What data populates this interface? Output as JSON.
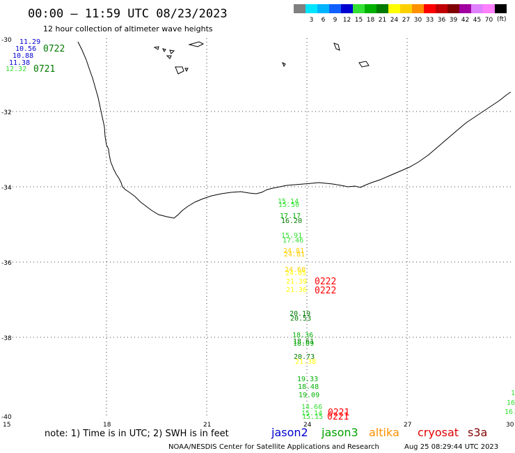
{
  "header": {
    "title": "00:00 — 11:59 UTC 08/23/2023",
    "subtitle": "12 hour collection of altimeter wave heights"
  },
  "legend": {
    "unit": "(ft)",
    "bins": [
      {
        "label": "",
        "color": "#808080"
      },
      {
        "label": "3",
        "color": "#00e5ff"
      },
      {
        "label": "6",
        "color": "#00b4ff"
      },
      {
        "label": "9",
        "color": "#1060ff"
      },
      {
        "label": "12",
        "color": "#0000d0"
      },
      {
        "label": "15",
        "color": "#33e033"
      },
      {
        "label": "18",
        "color": "#00b000"
      },
      {
        "label": "21",
        "color": "#007a00"
      },
      {
        "label": "24",
        "color": "#ffff00"
      },
      {
        "label": "27",
        "color": "#ffd000"
      },
      {
        "label": "30",
        "color": "#ff9000"
      },
      {
        "label": "33",
        "color": "#ff0000"
      },
      {
        "label": "36",
        "color": "#c00000"
      },
      {
        "label": "39",
        "color": "#800000"
      },
      {
        "label": "42",
        "color": "#a000a0"
      },
      {
        "label": "45",
        "color": "#e080ff"
      },
      {
        "label": "70",
        "color": "#ff80ff"
      },
      {
        "label": "",
        "color": "#000000"
      }
    ]
  },
  "axes": {
    "lon_ticks": [
      "15",
      "18",
      "21",
      "24",
      "27",
      "30"
    ],
    "lat_ticks": [
      "-30",
      "-32",
      "-34",
      "-36",
      "-38",
      "-40"
    ]
  },
  "observations": {
    "northwest_cluster": [
      {
        "text": "11.29",
        "color": "#0000d0"
      },
      {
        "text": "10.56",
        "color": "#0000d0"
      },
      {
        "text": "10.88",
        "color": "#0000d0"
      },
      {
        "text": "11.38",
        "color": "#0000d0"
      },
      {
        "text": "12.32",
        "color": "#33e033"
      }
    ],
    "northwest_times": [
      {
        "text": "0722",
        "color": "#007a00"
      },
      {
        "text": "0721",
        "color": "#007a00"
      }
    ],
    "track_24e": [
      {
        "text": "15.14",
        "color": "#33e033"
      },
      {
        "text": "15.50",
        "color": "#33e033"
      },
      {
        "text": "17.17",
        "color": "#00b000"
      },
      {
        "text": "16.20",
        "color": "#007a00"
      },
      {
        "text": "15.91",
        "color": "#33e033"
      },
      {
        "text": "17.46",
        "color": "#33e033"
      },
      {
        "text": "24.81",
        "color": "#ffd000"
      },
      {
        "text": "24.81",
        "color": "#ffd000"
      },
      {
        "text": "24.68",
        "color": "#ffd000"
      },
      {
        "text": "24.05",
        "color": "#ffff00"
      },
      {
        "text": "21.39",
        "color": "#ffff00"
      },
      {
        "text": "21.36",
        "color": "#ffff00"
      },
      {
        "text": "20.19",
        "color": "#007a00"
      },
      {
        "text": "20.53",
        "color": "#007a00"
      },
      {
        "text": "18.36",
        "color": "#00b000"
      },
      {
        "text": "18.61",
        "color": "#007a00"
      },
      {
        "text": "18.09",
        "color": "#00b000"
      },
      {
        "text": "20.73",
        "color": "#007a00"
      },
      {
        "text": "21.38",
        "color": "#ffff00"
      },
      {
        "text": "19.33",
        "color": "#00b000"
      },
      {
        "text": "18.48",
        "color": "#00b000"
      },
      {
        "text": "19.09",
        "color": "#00b000"
      },
      {
        "text": "14.66",
        "color": "#33e033"
      },
      {
        "text": "15.14",
        "color": "#33e033"
      },
      {
        "text": "15.15",
        "color": "#33e033"
      }
    ],
    "track_times": [
      {
        "text": "0222",
        "color": "#ff0000"
      },
      {
        "text": "0222",
        "color": "#ff0000"
      },
      {
        "text": "0221",
        "color": "#ff0000"
      },
      {
        "text": "0221",
        "color": "#ff0000"
      }
    ],
    "east_edge": [
      {
        "text": "1",
        "color": "#33e033"
      },
      {
        "text": "16",
        "color": "#33e033"
      },
      {
        "text": "16.",
        "color": "#33e033"
      }
    ]
  },
  "footer": {
    "note": "note: 1) Time is in UTC; 2) SWH is in feet",
    "satellites": [
      {
        "name": "jason2",
        "color": "#0000d0"
      },
      {
        "name": "jason3",
        "color": "#00a000"
      },
      {
        "name": "altika",
        "color": "#ff9000"
      },
      {
        "name": "cryosat",
        "color": "#e00000"
      },
      {
        "name": "s3a",
        "color": "#800000"
      }
    ],
    "credit": "NOAA/NESDIS Center for Satellite Applications and Research",
    "timestamp": "Aug 25 08:29:44 UTC 2023"
  }
}
